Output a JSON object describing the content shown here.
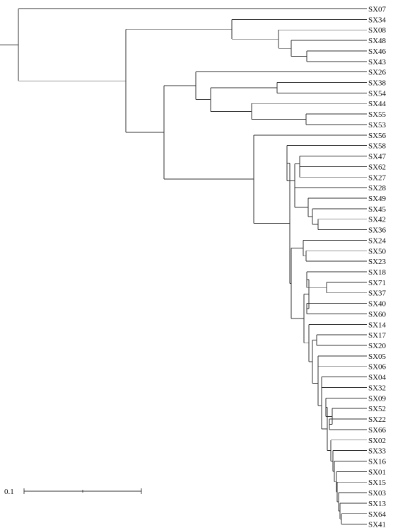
{
  "tree": {
    "scale_label": "0.1",
    "leaves": [
      "SX07",
      "SX34",
      "SX08",
      "SX48",
      "SX46",
      "SX43",
      "SX26",
      "SX38",
      "SX54",
      "SX44",
      "SX55",
      "SX53",
      "SX56",
      "SX58",
      "SX47",
      "SX62",
      "SX27",
      "SX28",
      "SX49",
      "SX45",
      "SX42",
      "SX36",
      "SX24",
      "SX50",
      "SX23",
      "SX18",
      "SX71",
      "SX37",
      "SX40",
      "SX60",
      "SX14",
      "SX17",
      "SX20",
      "SX05",
      "SX06",
      "SX04",
      "SX32",
      "SX09",
      "SX52",
      "SX22",
      "SX66",
      "SX02",
      "SX33",
      "SX16",
      "SX01",
      "SX15",
      "SX03",
      "SX13",
      "SX64",
      "SX41"
    ],
    "newick": "(SX07,((SX34,(SX08,(SX48,(SX46,SX43)))),((SX26,((SX38,SX54),(SX44,(SX55,SX53)))),(SX56,((SX58,((SX47,(SX62,SX27)),(SX28,(SX49,(SX45,(SX42,SX36)))))),((SX24,(SX50,SX23)),(((SX18,(SX71,SX37)),(SX40,SX60)),(SX14,((SX17,SX20),((SX05,SX06),((SX04,SX32),((SX09,(SX52,(SX22,SX66))),(SX02,(SX33,(SX16,(SX01,(SX15,(SX03,(SX13,(SX64,SX41)))))))))))))))))))))"
  }
}
